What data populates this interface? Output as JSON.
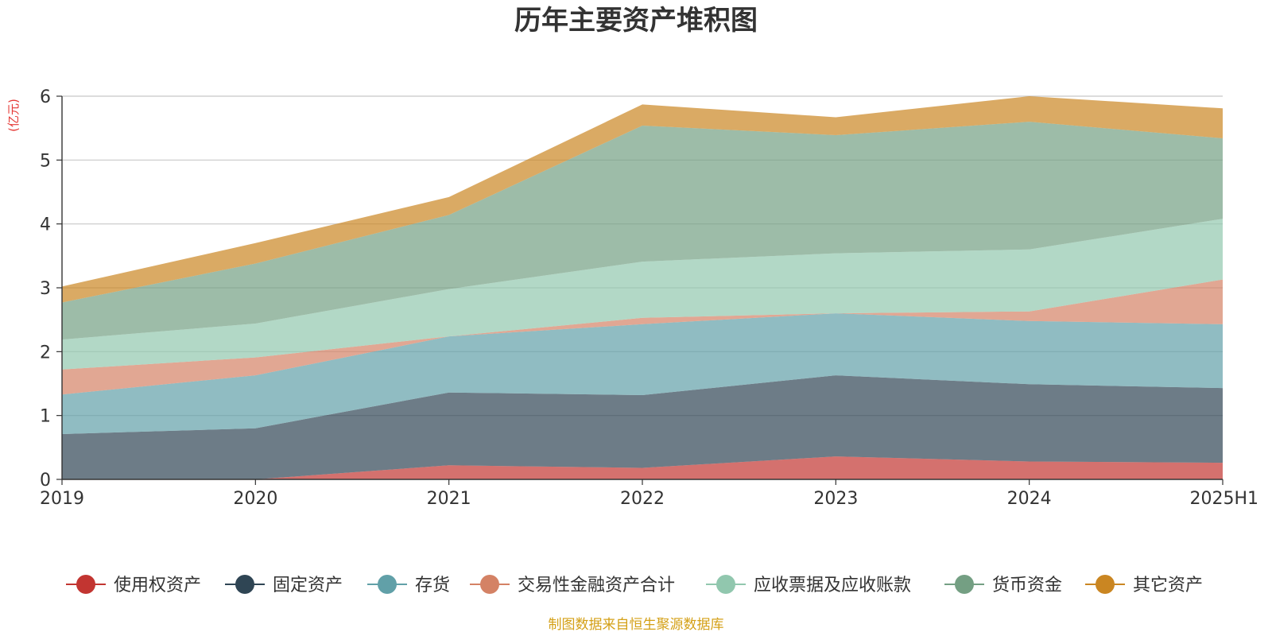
{
  "chart_data": {
    "type": "area",
    "title": "历年主要资产堆积图",
    "unit_label": "(亿元)",
    "categories": [
      "2019",
      "2020",
      "2021",
      "2022",
      "2023",
      "2024",
      "2025H1"
    ],
    "ylim": [
      0,
      6
    ],
    "yticks": [
      0,
      1,
      2,
      3,
      4,
      5,
      6
    ],
    "grid": true,
    "legend_position": "bottom",
    "stacked": true,
    "series": [
      {
        "name": "使用权资产",
        "color": "#c23531",
        "values": [
          0.0,
          0.0,
          0.22,
          0.18,
          0.36,
          0.28,
          0.26
        ]
      },
      {
        "name": "固定资产",
        "color": "#2f4554",
        "values": [
          0.71,
          0.8,
          1.14,
          1.14,
          1.27,
          1.21,
          1.17
        ]
      },
      {
        "name": "存货",
        "color": "#61a0a8",
        "values": [
          0.62,
          0.83,
          0.88,
          1.11,
          0.97,
          0.99,
          1.0
        ]
      },
      {
        "name": "交易性金融资产合计",
        "color": "#d48265",
        "values": [
          0.39,
          0.28,
          0.0,
          0.1,
          0.0,
          0.15,
          0.7
        ]
      },
      {
        "name": "应收票据及应收账款",
        "color": "#91c7ae",
        "values": [
          0.47,
          0.53,
          0.74,
          0.88,
          0.94,
          0.97,
          0.95
        ]
      },
      {
        "name": "货币资金",
        "color": "#749f83",
        "values": [
          0.58,
          0.94,
          1.16,
          2.13,
          1.85,
          2.0,
          1.26
        ]
      },
      {
        "name": "其它资产",
        "color": "#ca8622",
        "values": [
          0.25,
          0.32,
          0.28,
          0.33,
          0.28,
          0.4,
          0.47
        ]
      }
    ]
  },
  "footer": {
    "source": "制图数据来自恒生聚源数据库"
  }
}
